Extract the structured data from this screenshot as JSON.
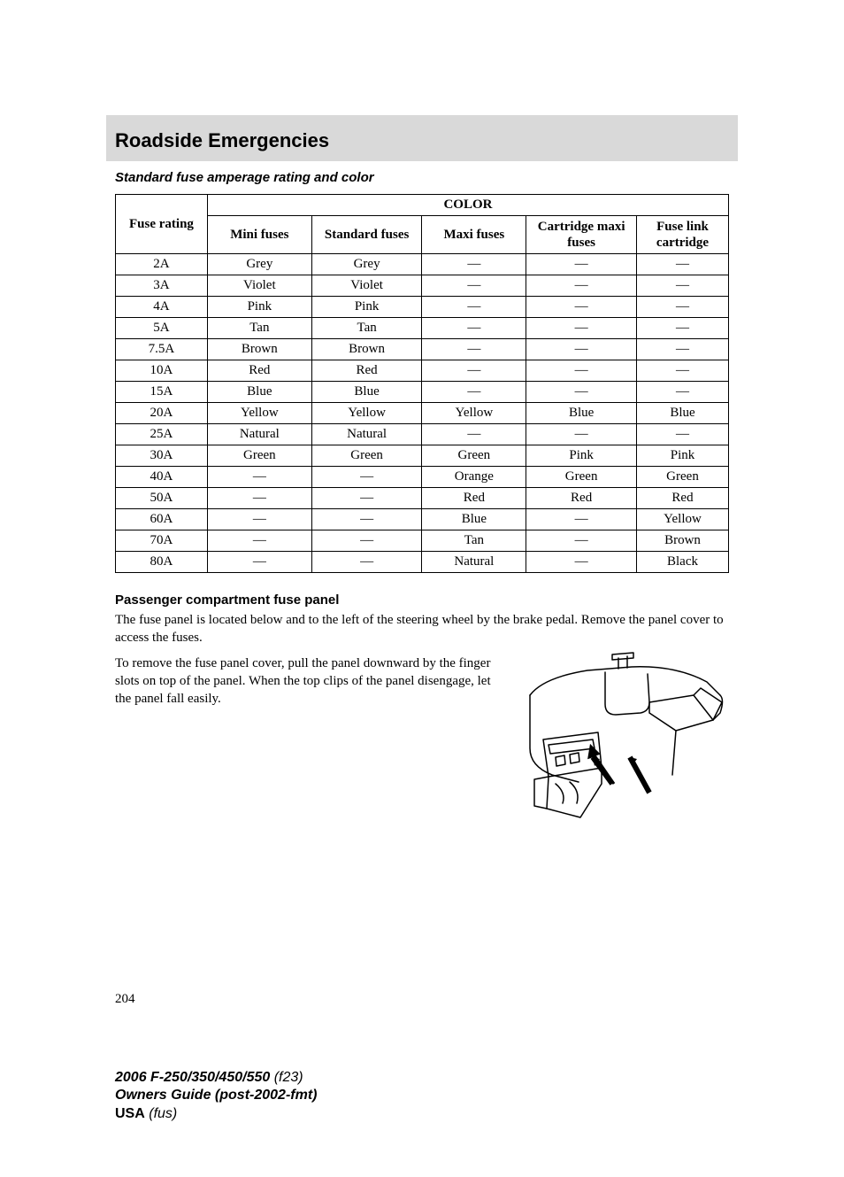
{
  "header": {
    "section_title": "Roadside Emergencies",
    "subheading": "Standard fuse amperage rating and color"
  },
  "table": {
    "color_header": "COLOR",
    "columns": [
      "Fuse rating",
      "Mini fuses",
      "Standard fuses",
      "Maxi fuses",
      "Cartridge maxi fuses",
      "Fuse link cartridge"
    ],
    "col_widths": [
      "15%",
      "17%",
      "18%",
      "17%",
      "18%",
      "15%"
    ],
    "rows": [
      [
        "2A",
        "Grey",
        "Grey",
        "—",
        "—",
        "—"
      ],
      [
        "3A",
        "Violet",
        "Violet",
        "—",
        "—",
        "—"
      ],
      [
        "4A",
        "Pink",
        "Pink",
        "—",
        "—",
        "—"
      ],
      [
        "5A",
        "Tan",
        "Tan",
        "—",
        "—",
        "—"
      ],
      [
        "7.5A",
        "Brown",
        "Brown",
        "—",
        "—",
        "—"
      ],
      [
        "10A",
        "Red",
        "Red",
        "—",
        "—",
        "—"
      ],
      [
        "15A",
        "Blue",
        "Blue",
        "—",
        "—",
        "—"
      ],
      [
        "20A",
        "Yellow",
        "Yellow",
        "Yellow",
        "Blue",
        "Blue"
      ],
      [
        "25A",
        "Natural",
        "Natural",
        "—",
        "—",
        "—"
      ],
      [
        "30A",
        "Green",
        "Green",
        "Green",
        "Pink",
        "Pink"
      ],
      [
        "40A",
        "—",
        "—",
        "Orange",
        "Green",
        "Green"
      ],
      [
        "50A",
        "—",
        "—",
        "Red",
        "Red",
        "Red"
      ],
      [
        "60A",
        "—",
        "—",
        "Blue",
        "—",
        "Yellow"
      ],
      [
        "70A",
        "—",
        "—",
        "Tan",
        "—",
        "Brown"
      ],
      [
        "80A",
        "—",
        "—",
        "Natural",
        "—",
        "Black"
      ]
    ]
  },
  "passenger": {
    "heading": "Passenger compartment fuse panel",
    "p1": "The fuse panel is located below and to the left of the steering wheel by the brake pedal. Remove the panel cover to access the fuses.",
    "p2": "To remove the fuse panel cover, pull the panel downward by the finger slots on top of the panel. When the top clips of the panel disengage, let the panel fall easily."
  },
  "page_number": "204",
  "footer": {
    "line1_bold": "2006 F-250/350/450/550",
    "line1_ital": "(f23)",
    "line2": "Owners Guide (post-2002-fmt)",
    "line3_bold": "USA",
    "line3_ital": "(fus)"
  },
  "svg": {
    "stroke": "#000000",
    "stroke_width": 1.5,
    "arrow_fill": "#000000"
  }
}
